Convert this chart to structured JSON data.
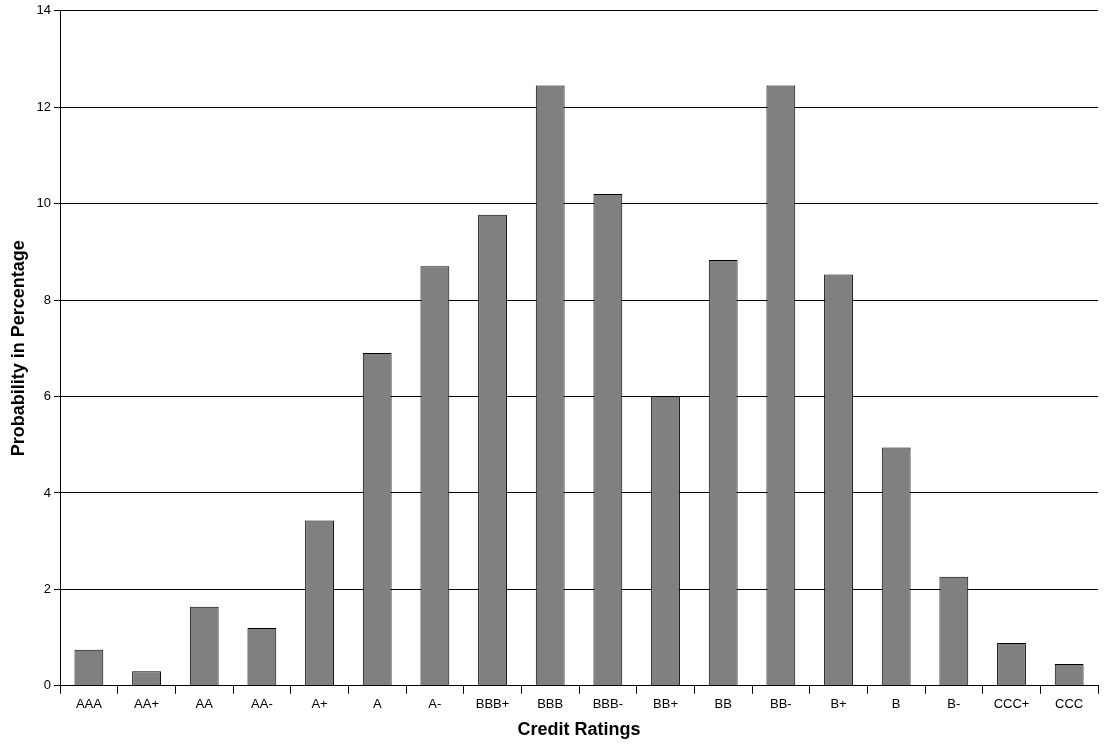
{
  "chart_data": {
    "type": "bar",
    "xlabel": "Credit Ratings",
    "ylabel": "Probability in Percentage",
    "categories": [
      "AAA",
      "AA+",
      "AA",
      "AA-",
      "A+",
      "A",
      "A-",
      "BBB+",
      "BBB",
      "BBB-",
      "BB+",
      "BB",
      "BB-",
      "B+",
      "B",
      "B-",
      "CCC+",
      "CCC"
    ],
    "values": [
      0.75,
      0.3,
      1.64,
      1.2,
      3.43,
      6.9,
      8.7,
      9.77,
      12.45,
      10.2,
      6.0,
      8.83,
      12.45,
      8.53,
      4.94,
      2.26,
      0.89,
      0.45
    ],
    "color": "#808080",
    "ylim": [
      0,
      14
    ],
    "yticks": [
      0,
      2,
      4,
      6,
      8,
      10,
      12,
      14
    ],
    "grid": "y",
    "legend": false
  }
}
